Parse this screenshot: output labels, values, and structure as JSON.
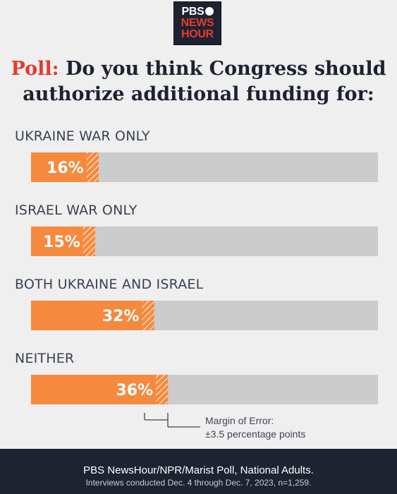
{
  "logo": {
    "line1": "PBS",
    "line2": "NEWS",
    "line3": "HOUR"
  },
  "title": {
    "lead": "Poll:",
    "line1_rest": " Do you think Congress should",
    "line2": "authorize additional funding for:"
  },
  "colors": {
    "bar": "#f58a3e",
    "track": "#cccccc",
    "accent": "#e63a2e",
    "footer_bg": "#1d2330"
  },
  "chart_data": {
    "type": "bar",
    "orientation": "horizontal",
    "categories": [
      "UKRAINE WAR ONLY",
      "ISRAEL WAR ONLY",
      "BOTH UKRAINE AND ISRAEL",
      "NEITHER"
    ],
    "values": [
      16,
      15,
      32,
      36
    ],
    "value_labels": [
      "16%",
      "15%",
      "32%",
      "36%"
    ],
    "unit": "%",
    "margin_of_error": 3.5,
    "xlim": [
      0,
      100
    ]
  },
  "moe_note": {
    "line1": "Margin of Error:",
    "line2": "±3.5 percentage points"
  },
  "footer": {
    "line1": "PBS NewsHour/NPR/Marist Poll, National Adults.",
    "line2": "Interviews conducted Dec. 4 through Dec. 7, 2023, n=1,259."
  }
}
